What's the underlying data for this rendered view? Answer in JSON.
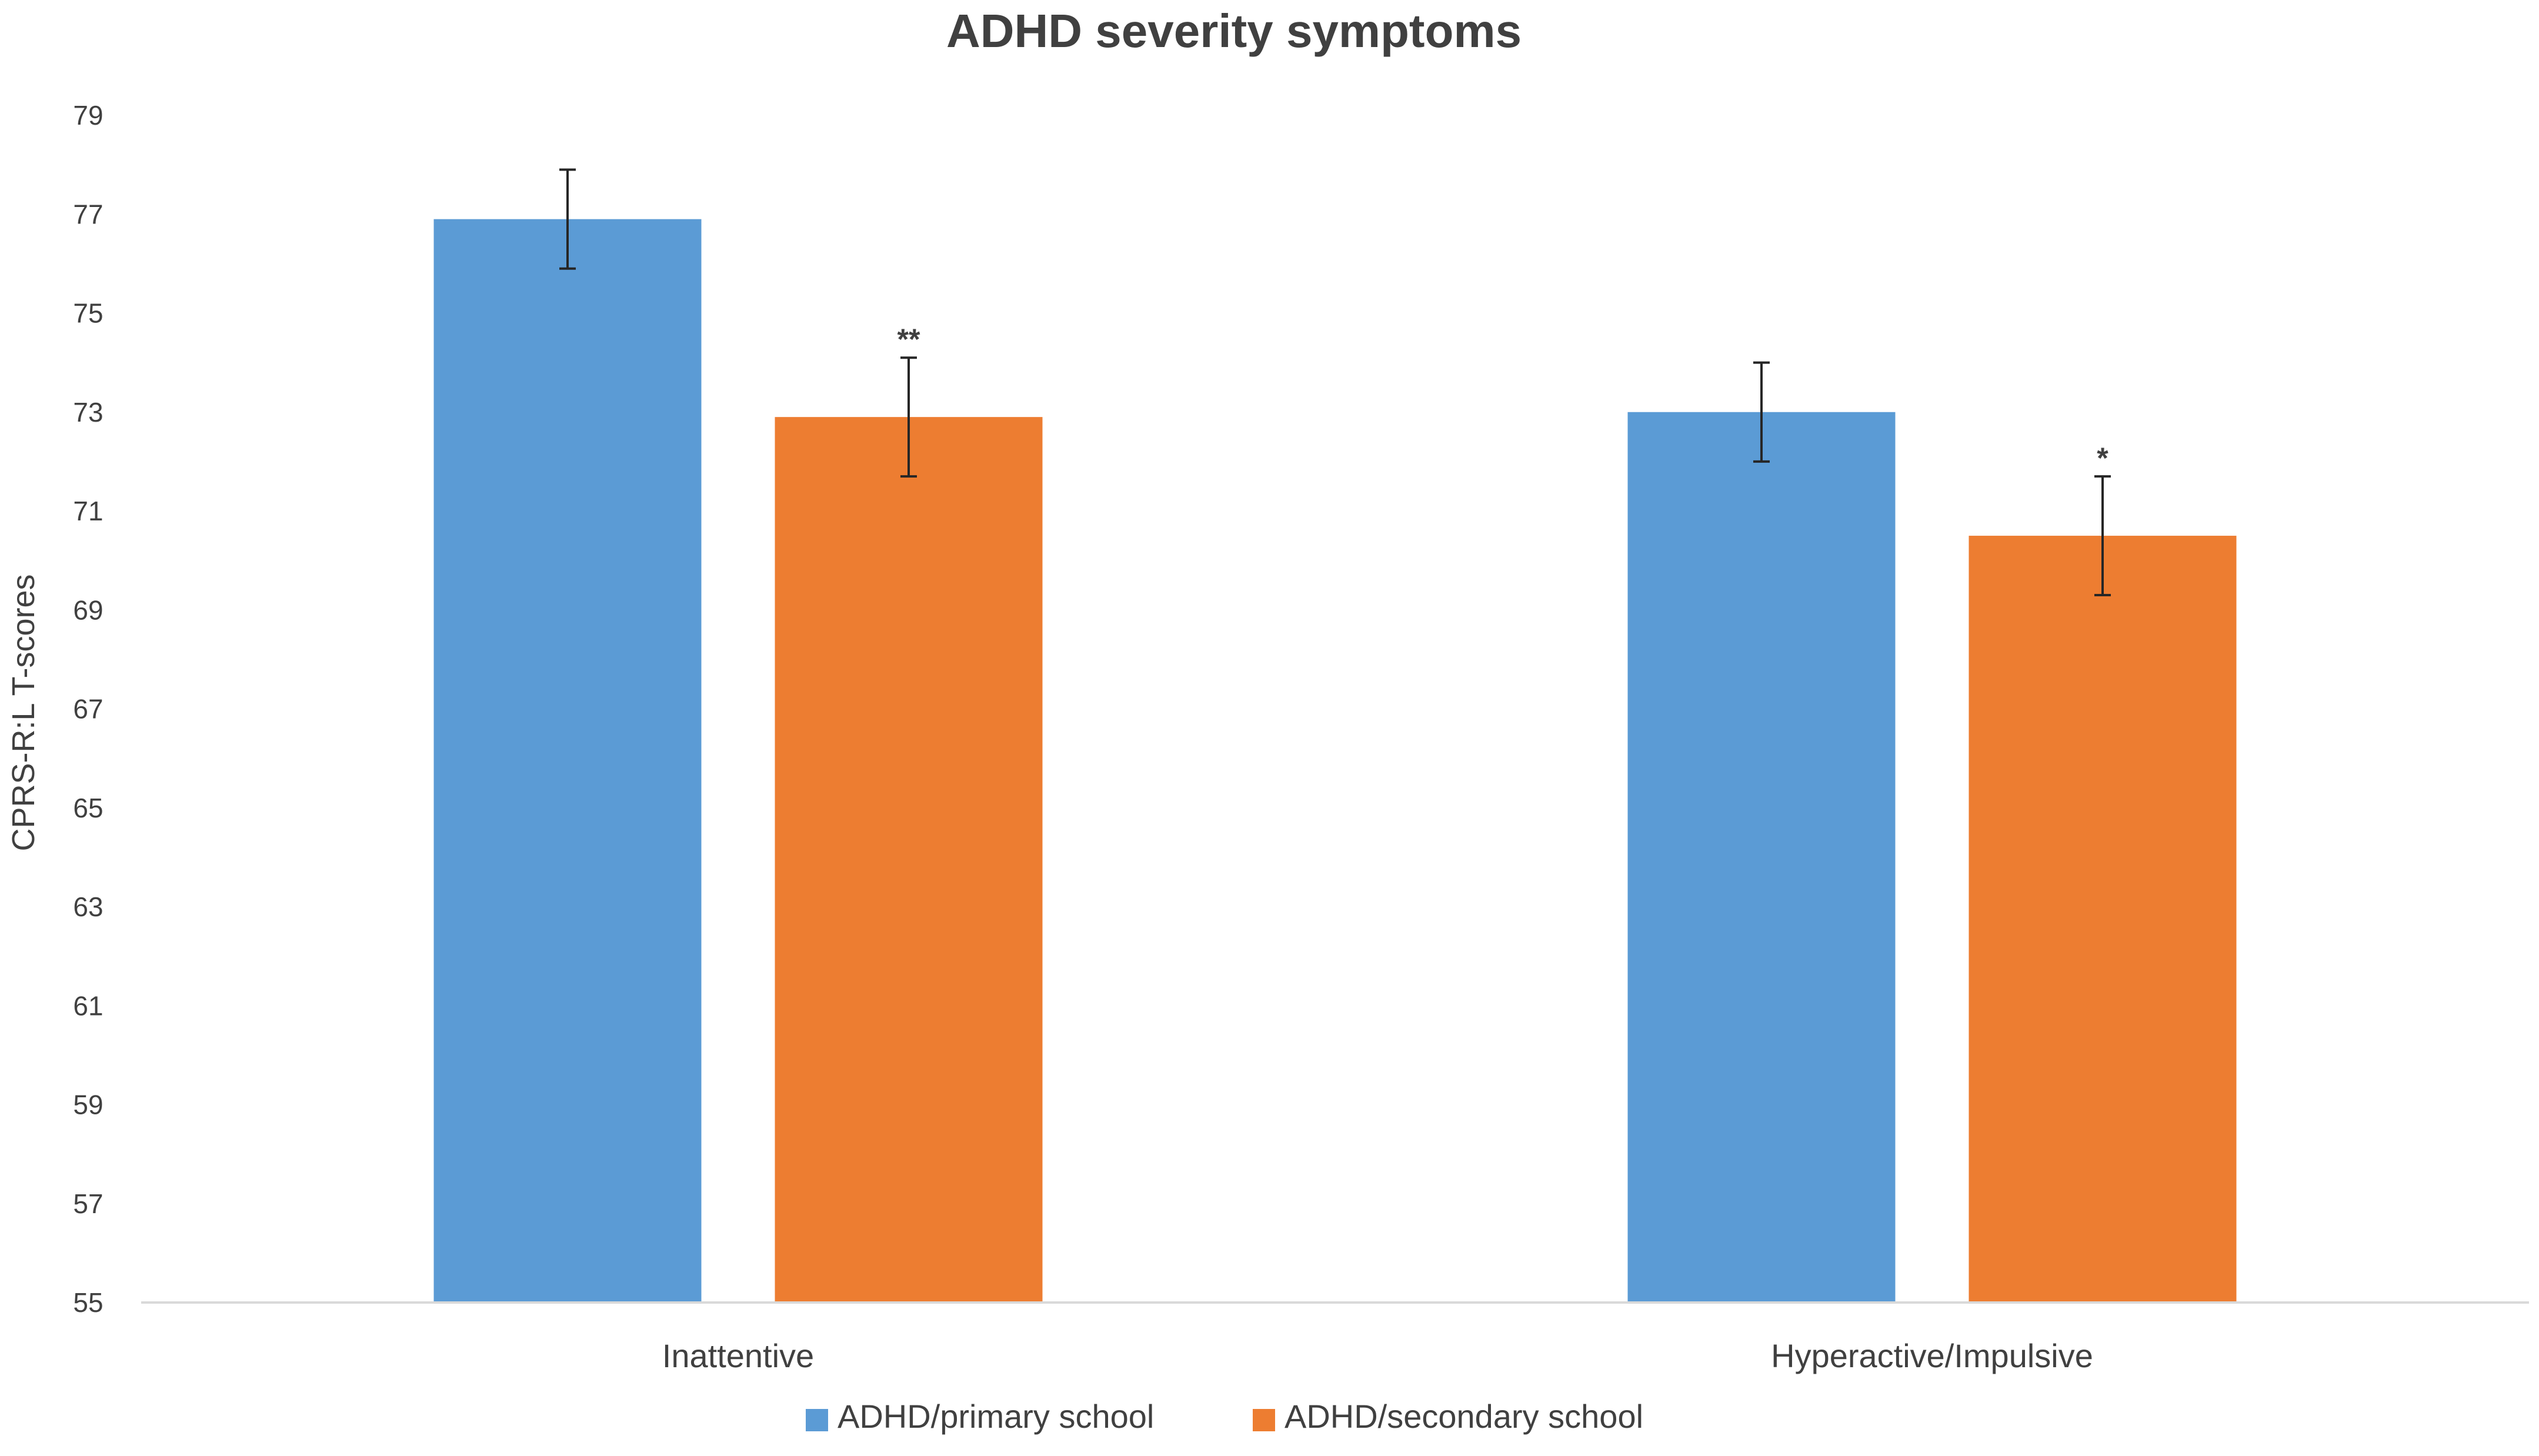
{
  "chart_data": {
    "type": "bar",
    "title": "ADHD severity symptoms",
    "xlabel": "",
    "ylabel": "CPRS-R:L T-scores",
    "ylim": [
      55,
      79
    ],
    "yticks": [
      55,
      57,
      59,
      61,
      63,
      65,
      67,
      69,
      71,
      73,
      75,
      77,
      79
    ],
    "ytick_labels": [
      "55",
      "57",
      "59",
      "61",
      "63",
      "65",
      "67",
      "69",
      "71",
      "73",
      "75",
      "77",
      "79"
    ],
    "categories": [
      "Inattentive",
      "Hyperactive/Impulsive"
    ],
    "grid": false,
    "legend_position": "bottom-center",
    "series": [
      {
        "name": "ADHD/primary school",
        "color": "#5B9BD5",
        "values": [
          76.9,
          73.0
        ],
        "errors": [
          1.0,
          1.0
        ],
        "annotations": [
          "",
          ""
        ]
      },
      {
        "name": "ADHD/secondary school",
        "color": "#ED7D31",
        "values": [
          72.9,
          70.5
        ],
        "errors": [
          1.2,
          1.2
        ],
        "annotations": [
          "**",
          "*"
        ]
      }
    ]
  }
}
